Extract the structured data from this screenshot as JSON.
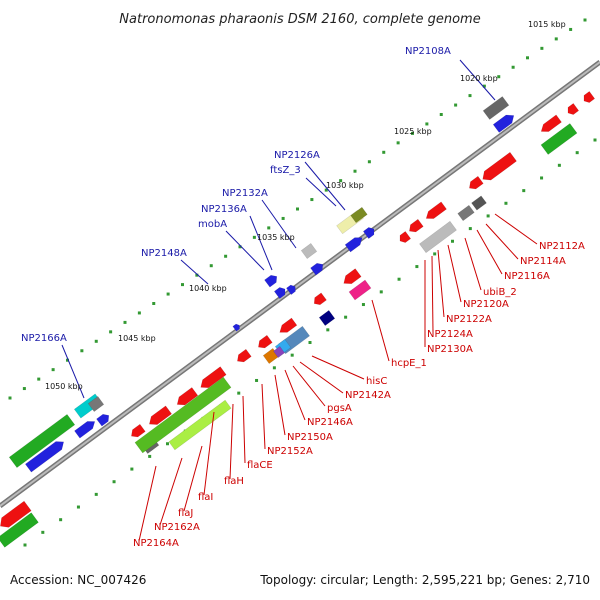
{
  "title": "Natronomonas pharaonis DSM 2160, complete genome",
  "footer": {
    "accession": "Accession: NC_007426",
    "topology": "Topology: circular; Length: 2,595,221 bp; Genes: 2,710"
  },
  "ticks": [
    "1015 kbp",
    "1020 kbp",
    "1025 kbp",
    "1030 kbp",
    "1035 kbp",
    "1040 kbp",
    "1045 kbp",
    "1050 kbp"
  ],
  "blue_labels": [
    "NP2108A",
    "NP2126A",
    "ftsZ_3",
    "NP2132A",
    "NP2136A",
    "mobA",
    "NP2148A",
    "NP2166A"
  ],
  "red_labels": [
    "NP2112A",
    "NP2114A",
    "NP2116A",
    "ubiB_2",
    "NP2120A",
    "NP2122A",
    "NP2124A",
    "NP2130A",
    "hcpE_1",
    "hisC",
    "NP2142A",
    "pgsA",
    "NP2146A",
    "NP2150A",
    "NP2152A",
    "flaCE",
    "flaH",
    "flaI",
    "flaJ",
    "NP2162A",
    "NP2164A"
  ],
  "colors": {
    "forward_gene": "#2222dd",
    "reverse_gene": "#ee1111",
    "rna_gene": "#22aa22",
    "backbone": "#888888",
    "tick_mark": "#339933"
  }
}
